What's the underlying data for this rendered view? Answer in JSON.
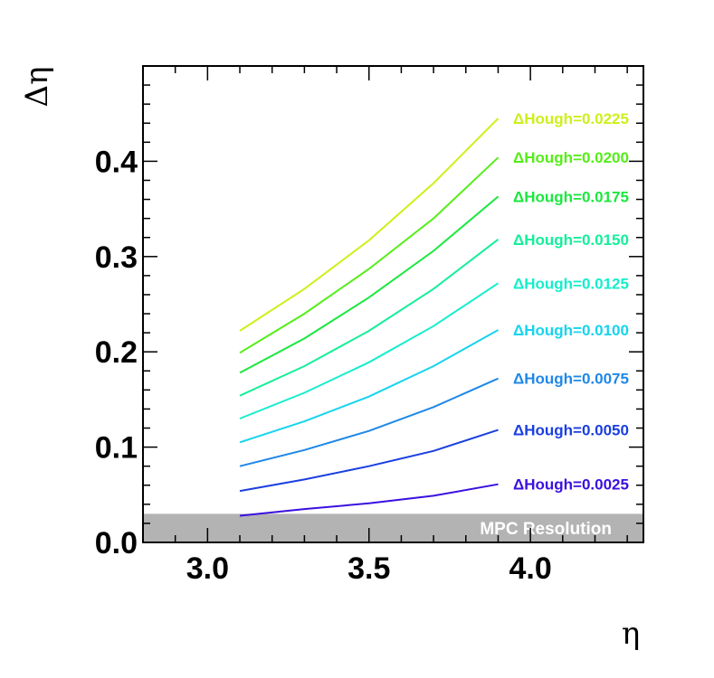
{
  "chart_data": {
    "type": "line",
    "xlabel": "η",
    "ylabel": "Δη",
    "xlim": [
      2.8,
      4.35
    ],
    "ylim": [
      0.0,
      0.5
    ],
    "xticks": [
      {
        "value": 3.0,
        "label": "3.0"
      },
      {
        "value": 3.5,
        "label": "3.5"
      },
      {
        "value": 4.0,
        "label": "4.0"
      }
    ],
    "yticks": [
      {
        "value": 0.0,
        "label": "0.0"
      },
      {
        "value": 0.1,
        "label": "0.1"
      },
      {
        "value": 0.2,
        "label": "0.2"
      },
      {
        "value": 0.3,
        "label": "0.3"
      },
      {
        "value": 0.4,
        "label": "0.4"
      }
    ],
    "x": [
      3.1,
      3.3,
      3.5,
      3.7,
      3.9
    ],
    "band": {
      "label": "MPC Resolution",
      "ymin": 0.0,
      "ymax": 0.03,
      "color": "#b3b3b3"
    },
    "series": [
      {
        "name": "ΔHough=0.0025",
        "color": "#3a10e0",
        "values": [
          0.028,
          0.035,
          0.041,
          0.049,
          0.061
        ]
      },
      {
        "name": "ΔHough=0.0050",
        "color": "#1a3fe0",
        "values": [
          0.054,
          0.066,
          0.08,
          0.096,
          0.118
        ]
      },
      {
        "name": "ΔHough=0.0075",
        "color": "#1f88e8",
        "values": [
          0.08,
          0.097,
          0.117,
          0.142,
          0.172
        ]
      },
      {
        "name": "ΔHough=0.0100",
        "color": "#16d4ee",
        "values": [
          0.105,
          0.127,
          0.153,
          0.185,
          0.223
        ]
      },
      {
        "name": "ΔHough=0.0125",
        "color": "#14eecc",
        "values": [
          0.13,
          0.157,
          0.189,
          0.227,
          0.272
        ]
      },
      {
        "name": "ΔHough=0.0150",
        "color": "#14ef9a",
        "values": [
          0.154,
          0.185,
          0.222,
          0.266,
          0.318
        ]
      },
      {
        "name": "ΔHough=0.0175",
        "color": "#1ae83e",
        "values": [
          0.178,
          0.214,
          0.257,
          0.306,
          0.363
        ]
      },
      {
        "name": "ΔHough=0.0200",
        "color": "#55ee18",
        "values": [
          0.199,
          0.24,
          0.287,
          0.34,
          0.404
        ]
      },
      {
        "name": "ΔHough=0.0225",
        "color": "#cdf01a",
        "values": [
          0.222,
          0.266,
          0.317,
          0.377,
          0.445
        ]
      }
    ]
  }
}
